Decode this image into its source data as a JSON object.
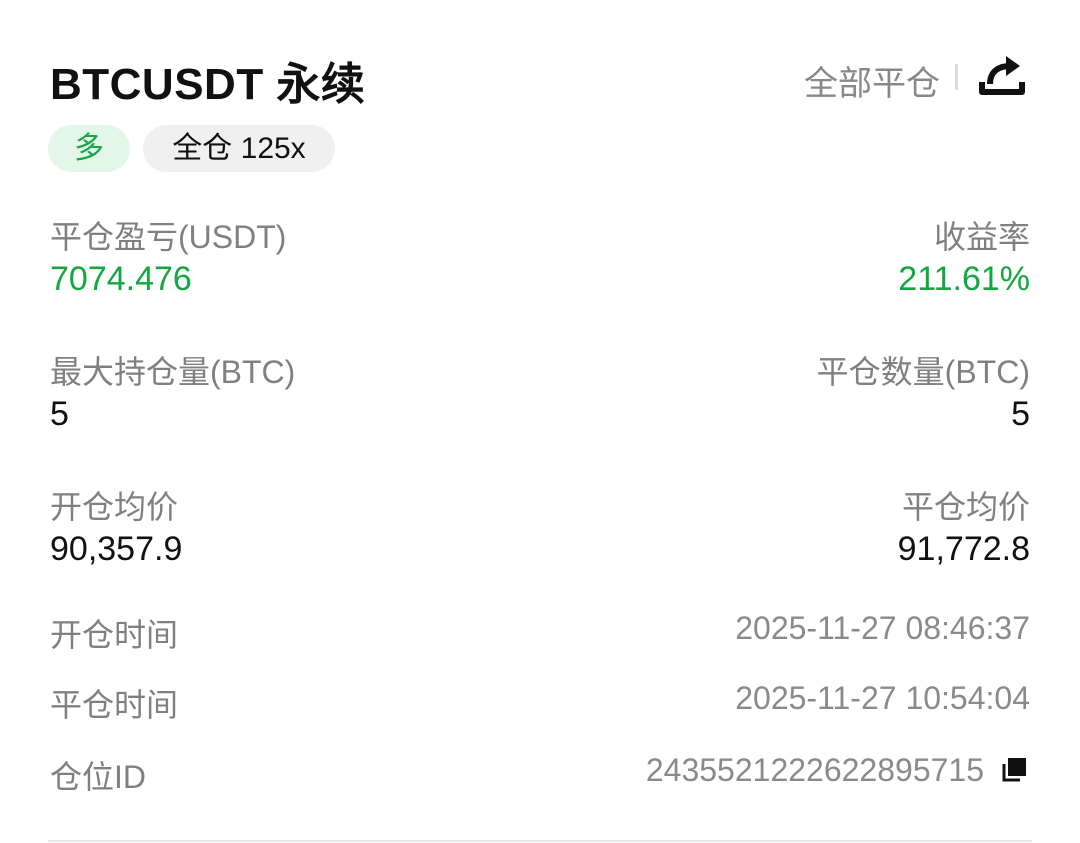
{
  "header": {
    "title": "BTCUSDT 永续",
    "close_all_label": "全部平仓",
    "share_icon": "share-icon"
  },
  "badges": {
    "side": "多",
    "margin": "全仓 125x"
  },
  "colors": {
    "profit": "#12a83f",
    "side_badge_bg": "#e3f6ea"
  },
  "fields": {
    "pnl": {
      "label": "平仓盈亏(USDT)",
      "value": "7074.476"
    },
    "roi": {
      "label": "收益率",
      "value": "211.61%"
    },
    "max_position": {
      "label": "最大持仓量(BTC)",
      "value": "5"
    },
    "closed_qty": {
      "label": "平仓数量(BTC)",
      "value": "5"
    },
    "open_avg": {
      "label": "开仓均价",
      "value": "90,357.9"
    },
    "close_avg": {
      "label": "平仓均价",
      "value": "91,772.8"
    },
    "open_time": {
      "label": "开仓时间",
      "value": "2025-11-27 08:46:37"
    },
    "close_time": {
      "label": "平仓时间",
      "value": "2025-11-27 10:54:04"
    },
    "position_id": {
      "label": "仓位ID",
      "value": "2435521222622895715"
    }
  }
}
